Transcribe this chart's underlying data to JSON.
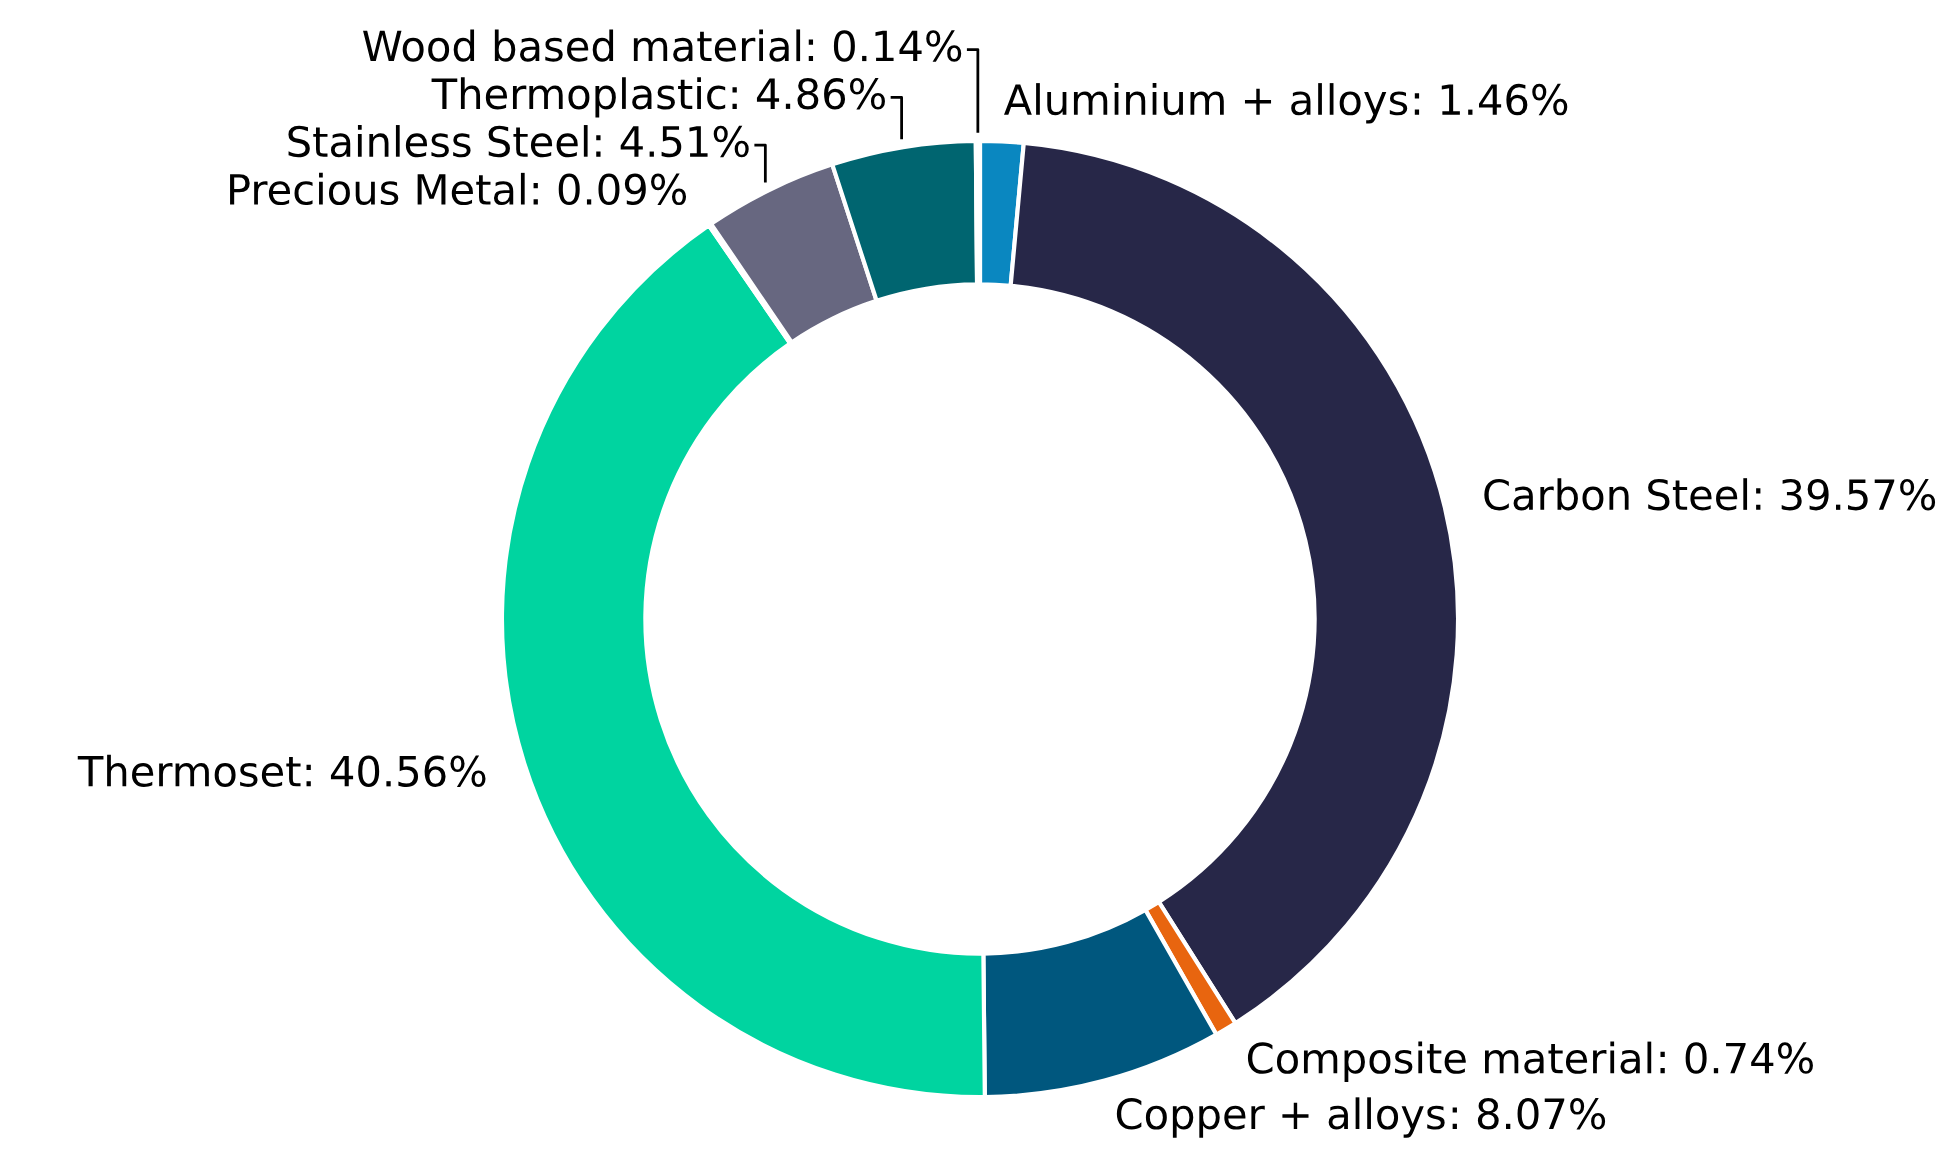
{
  "chart_data": {
    "type": "donut",
    "categories": [
      "Aluminium + alloys",
      "Carbon Steel",
      "Composite material",
      "Copper + alloys",
      "Thermoset",
      "Precious Metal",
      "Stainless Steel",
      "Thermoplastic",
      "Wood based material"
    ],
    "values": [
      1.46,
      39.57,
      0.74,
      8.07,
      40.56,
      0.09,
      4.51,
      4.86,
      0.14
    ],
    "colors": [
      "#0a87c0",
      "#272748",
      "#e8650f",
      "#00577e",
      "#00d4a0",
      "#9a9a9a",
      "#676780",
      "#006570",
      "#c8a060"
    ],
    "value_labels": [
      ": 1.46%",
      ": 39.57%",
      ": 0.74%",
      ": 8.07%",
      ": 40.56%",
      ": 0.09%",
      ": 4.51%",
      ": 4.86%",
      ": 0.14%"
    ]
  }
}
